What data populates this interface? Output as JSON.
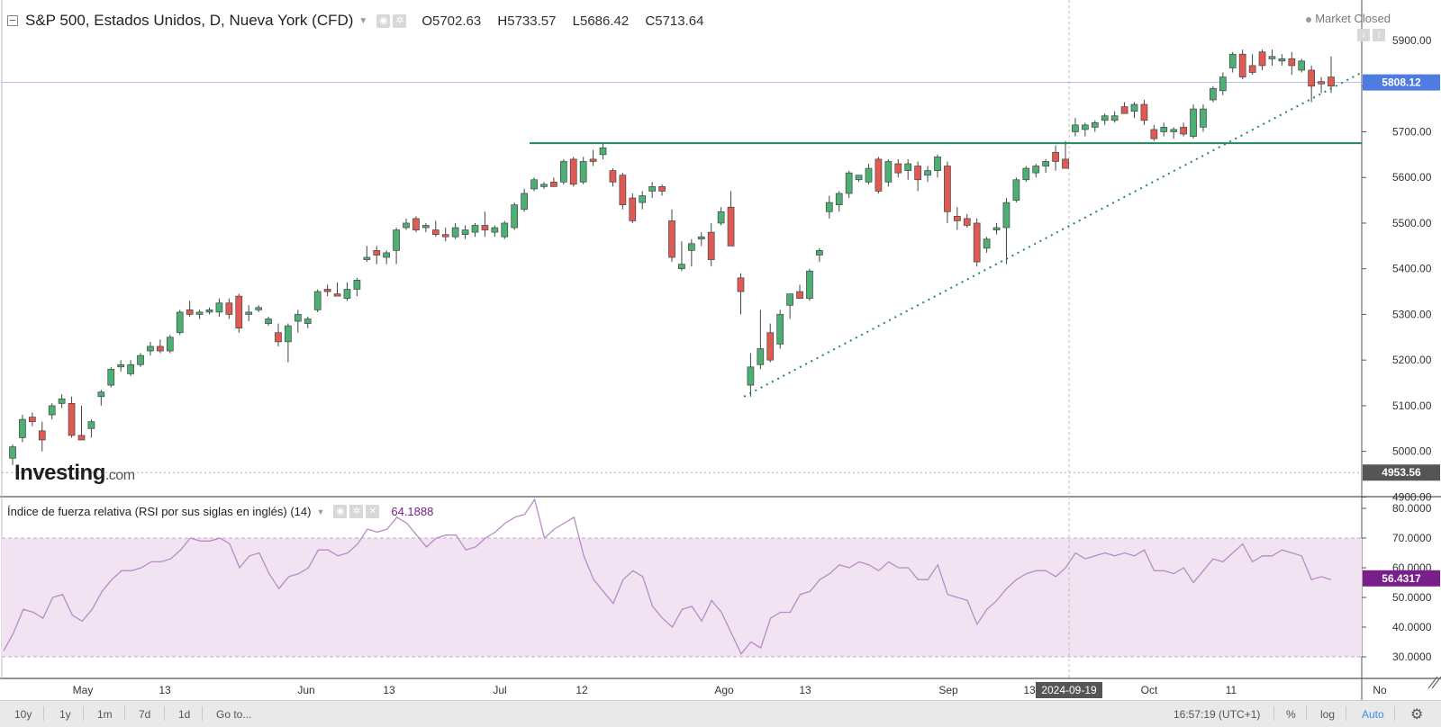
{
  "header": {
    "title": "S&P 500, Estados Unidos, D, Nueva York (CFD)",
    "ohlc": [
      {
        "key": "O",
        "value": "5702.63"
      },
      {
        "key": "H",
        "value": "5733.57"
      },
      {
        "key": "L",
        "value": "5686.42"
      },
      {
        "key": "C",
        "value": "5713.64"
      }
    ],
    "market_status": "Market Closed"
  },
  "price_axis": {
    "ticks": [
      "5900.00",
      "5800.00",
      "5700.00",
      "5600.00",
      "5500.00",
      "5400.00",
      "5300.00",
      "5200.00",
      "5100.00",
      "5000.00",
      "4900.00"
    ],
    "crosshair_label": "5808.12",
    "cursor_price_label": "4953.56"
  },
  "rsi": {
    "title": "Índice de fuerza relativa (RSI por sus siglas en inglés) (14)",
    "value": "64.1888",
    "ticks": [
      "80.0000",
      "70.0000",
      "60.0000",
      "50.0000",
      "40.0000",
      "30.0000"
    ],
    "last_label": "56.4317"
  },
  "time_axis": {
    "ticks": [
      "May",
      "13",
      "Jun",
      "13",
      "Jul",
      "12",
      "Ago",
      "13",
      "Sep",
      "13",
      "Oct",
      "11",
      "No"
    ],
    "crosshair_label": "2024-09-19"
  },
  "logo": {
    "text": "Investing",
    "suffix": ".com"
  },
  "bottom_bar": {
    "ranges": [
      "10y",
      "1y",
      "1m",
      "7d",
      "1d",
      "Go to..."
    ],
    "clock": "16:57:19 (UTC+1)",
    "pct": "%",
    "log": "log",
    "auto": "Auto"
  },
  "colors": {
    "up": "#4caf73",
    "down": "#e05a54",
    "rsi_line": "#b88cc6",
    "rsi_band": "#f1e3f1",
    "support": "#1f8a5c",
    "crosshair_label": "#4f7ce0",
    "rsi_label": "#7a1f8a"
  },
  "chart_data": {
    "type": "candlestick",
    "title": "S&P 500, Estados Unidos, D, Nueva York (CFD)",
    "ylim": [
      4900,
      5950
    ],
    "candles": [
      {
        "o": 4985,
        "h": 5015,
        "l": 4970,
        "c": 5010
      },
      {
        "o": 5030,
        "h": 5080,
        "l": 5020,
        "c": 5070
      },
      {
        "o": 5075,
        "h": 5085,
        "l": 5055,
        "c": 5065
      },
      {
        "o": 5045,
        "h": 5065,
        "l": 5000,
        "c": 5025
      },
      {
        "o": 5080,
        "h": 5105,
        "l": 5070,
        "c": 5100
      },
      {
        "o": 5105,
        "h": 5125,
        "l": 5095,
        "c": 5115
      },
      {
        "o": 5105,
        "h": 5120,
        "l": 5030,
        "c": 5035
      },
      {
        "o": 5035,
        "h": 5100,
        "l": 5025,
        "c": 5025
      },
      {
        "o": 5050,
        "h": 5070,
        "l": 5030,
        "c": 5065
      },
      {
        "o": 5120,
        "h": 5135,
        "l": 5100,
        "c": 5130
      },
      {
        "o": 5145,
        "h": 5185,
        "l": 5140,
        "c": 5180
      },
      {
        "o": 5185,
        "h": 5200,
        "l": 5175,
        "c": 5190
      },
      {
        "o": 5170,
        "h": 5200,
        "l": 5165,
        "c": 5190
      },
      {
        "o": 5190,
        "h": 5215,
        "l": 5185,
        "c": 5210
      },
      {
        "o": 5220,
        "h": 5240,
        "l": 5210,
        "c": 5230
      },
      {
        "o": 5230,
        "h": 5245,
        "l": 5215,
        "c": 5220
      },
      {
        "o": 5220,
        "h": 5255,
        "l": 5215,
        "c": 5250
      },
      {
        "o": 5260,
        "h": 5310,
        "l": 5255,
        "c": 5305
      },
      {
        "o": 5310,
        "h": 5330,
        "l": 5295,
        "c": 5300
      },
      {
        "o": 5300,
        "h": 5310,
        "l": 5290,
        "c": 5305
      },
      {
        "o": 5305,
        "h": 5315,
        "l": 5300,
        "c": 5310
      },
      {
        "o": 5305,
        "h": 5335,
        "l": 5295,
        "c": 5325
      },
      {
        "o": 5325,
        "h": 5335,
        "l": 5290,
        "c": 5300
      },
      {
        "o": 5340,
        "h": 5345,
        "l": 5260,
        "c": 5270
      },
      {
        "o": 5300,
        "h": 5320,
        "l": 5285,
        "c": 5305
      },
      {
        "o": 5310,
        "h": 5320,
        "l": 5305,
        "c": 5315
      },
      {
        "o": 5280,
        "h": 5295,
        "l": 5275,
        "c": 5290
      },
      {
        "o": 5260,
        "h": 5280,
        "l": 5230,
        "c": 5240
      },
      {
        "o": 5240,
        "h": 5280,
        "l": 5195,
        "c": 5275
      },
      {
        "o": 5285,
        "h": 5310,
        "l": 5260,
        "c": 5300
      },
      {
        "o": 5280,
        "h": 5295,
        "l": 5270,
        "c": 5290
      },
      {
        "o": 5310,
        "h": 5355,
        "l": 5305,
        "c": 5350
      },
      {
        "o": 5355,
        "h": 5365,
        "l": 5340,
        "c": 5350
      },
      {
        "o": 5345,
        "h": 5370,
        "l": 5340,
        "c": 5340
      },
      {
        "o": 5335,
        "h": 5370,
        "l": 5330,
        "c": 5355
      },
      {
        "o": 5355,
        "h": 5380,
        "l": 5340,
        "c": 5375
      },
      {
        "o": 5420,
        "h": 5450,
        "l": 5415,
        "c": 5425
      },
      {
        "o": 5440,
        "h": 5450,
        "l": 5410,
        "c": 5430
      },
      {
        "o": 5425,
        "h": 5440,
        "l": 5410,
        "c": 5435
      },
      {
        "o": 5440,
        "h": 5490,
        "l": 5410,
        "c": 5485
      },
      {
        "o": 5490,
        "h": 5510,
        "l": 5485,
        "c": 5500
      },
      {
        "o": 5510,
        "h": 5515,
        "l": 5480,
        "c": 5485
      },
      {
        "o": 5490,
        "h": 5500,
        "l": 5480,
        "c": 5495
      },
      {
        "o": 5485,
        "h": 5505,
        "l": 5470,
        "c": 5475
      },
      {
        "o": 5475,
        "h": 5490,
        "l": 5460,
        "c": 5470
      },
      {
        "o": 5470,
        "h": 5500,
        "l": 5465,
        "c": 5490
      },
      {
        "o": 5475,
        "h": 5495,
        "l": 5465,
        "c": 5485
      },
      {
        "o": 5480,
        "h": 5500,
        "l": 5470,
        "c": 5495
      },
      {
        "o": 5495,
        "h": 5525,
        "l": 5470,
        "c": 5485
      },
      {
        "o": 5480,
        "h": 5495,
        "l": 5470,
        "c": 5490
      },
      {
        "o": 5470,
        "h": 5505,
        "l": 5465,
        "c": 5500
      },
      {
        "o": 5490,
        "h": 5545,
        "l": 5485,
        "c": 5540
      },
      {
        "o": 5530,
        "h": 5575,
        "l": 5525,
        "c": 5565
      },
      {
        "o": 5575,
        "h": 5600,
        "l": 5570,
        "c": 5595
      },
      {
        "o": 5580,
        "h": 5590,
        "l": 5575,
        "c": 5585
      },
      {
        "o": 5590,
        "h": 5600,
        "l": 5585,
        "c": 5580
      },
      {
        "o": 5590,
        "h": 5640,
        "l": 5585,
        "c": 5635
      },
      {
        "o": 5640,
        "h": 5645,
        "l": 5580,
        "c": 5585
      },
      {
        "o": 5590,
        "h": 5645,
        "l": 5585,
        "c": 5635
      },
      {
        "o": 5640,
        "h": 5660,
        "l": 5625,
        "c": 5635
      },
      {
        "o": 5650,
        "h": 5675,
        "l": 5640,
        "c": 5665
      },
      {
        "o": 5615,
        "h": 5620,
        "l": 5580,
        "c": 5590
      },
      {
        "o": 5605,
        "h": 5610,
        "l": 5530,
        "c": 5540
      },
      {
        "o": 5555,
        "h": 5565,
        "l": 5500,
        "c": 5505
      },
      {
        "o": 5545,
        "h": 5570,
        "l": 5530,
        "c": 5560
      },
      {
        "o": 5570,
        "h": 5590,
        "l": 5555,
        "c": 5580
      },
      {
        "o": 5580,
        "h": 5585,
        "l": 5560,
        "c": 5570
      },
      {
        "o": 5505,
        "h": 5530,
        "l": 5415,
        "c": 5425
      },
      {
        "o": 5400,
        "h": 5460,
        "l": 5395,
        "c": 5410
      },
      {
        "o": 5440,
        "h": 5465,
        "l": 5405,
        "c": 5455
      },
      {
        "o": 5465,
        "h": 5480,
        "l": 5450,
        "c": 5470
      },
      {
        "o": 5480,
        "h": 5500,
        "l": 5405,
        "c": 5420
      },
      {
        "o": 5500,
        "h": 5535,
        "l": 5495,
        "c": 5525
      },
      {
        "o": 5535,
        "h": 5570,
        "l": 5460,
        "c": 5450
      },
      {
        "o": 5380,
        "h": 5390,
        "l": 5300,
        "c": 5350
      },
      {
        "o": 5145,
        "h": 5215,
        "l": 5120,
        "c": 5185
      },
      {
        "o": 5190,
        "h": 5310,
        "l": 5180,
        "c": 5225
      },
      {
        "o": 5260,
        "h": 5280,
        "l": 5195,
        "c": 5200
      },
      {
        "o": 5235,
        "h": 5310,
        "l": 5225,
        "c": 5300
      },
      {
        "o": 5320,
        "h": 5340,
        "l": 5290,
        "c": 5345
      },
      {
        "o": 5350,
        "h": 5365,
        "l": 5335,
        "c": 5335
      },
      {
        "o": 5335,
        "h": 5400,
        "l": 5330,
        "c": 5395
      },
      {
        "o": 5430,
        "h": 5445,
        "l": 5415,
        "c": 5440
      },
      {
        "o": 5525,
        "h": 5560,
        "l": 5510,
        "c": 5545
      },
      {
        "o": 5540,
        "h": 5570,
        "l": 5525,
        "c": 5565
      },
      {
        "o": 5565,
        "h": 5615,
        "l": 5555,
        "c": 5610
      },
      {
        "o": 5595,
        "h": 5605,
        "l": 5590,
        "c": 5605
      },
      {
        "o": 5590,
        "h": 5630,
        "l": 5585,
        "c": 5620
      },
      {
        "o": 5640,
        "h": 5645,
        "l": 5565,
        "c": 5570
      },
      {
        "o": 5590,
        "h": 5640,
        "l": 5580,
        "c": 5635
      },
      {
        "o": 5630,
        "h": 5640,
        "l": 5600,
        "c": 5610
      },
      {
        "o": 5615,
        "h": 5640,
        "l": 5595,
        "c": 5630
      },
      {
        "o": 5625,
        "h": 5635,
        "l": 5570,
        "c": 5595
      },
      {
        "o": 5605,
        "h": 5625,
        "l": 5590,
        "c": 5615
      },
      {
        "o": 5615,
        "h": 5650,
        "l": 5600,
        "c": 5645
      },
      {
        "o": 5625,
        "h": 5635,
        "l": 5500,
        "c": 5525
      },
      {
        "o": 5515,
        "h": 5535,
        "l": 5485,
        "c": 5505
      },
      {
        "o": 5510,
        "h": 5520,
        "l": 5490,
        "c": 5495
      },
      {
        "o": 5500,
        "h": 5510,
        "l": 5405,
        "c": 5415
      },
      {
        "o": 5445,
        "h": 5470,
        "l": 5435,
        "c": 5465
      },
      {
        "o": 5485,
        "h": 5500,
        "l": 5475,
        "c": 5490
      },
      {
        "o": 5490,
        "h": 5555,
        "l": 5410,
        "c": 5545
      },
      {
        "o": 5550,
        "h": 5600,
        "l": 5545,
        "c": 5595
      },
      {
        "o": 5595,
        "h": 5625,
        "l": 5590,
        "c": 5620
      },
      {
        "o": 5610,
        "h": 5630,
        "l": 5600,
        "c": 5625
      },
      {
        "o": 5625,
        "h": 5640,
        "l": 5610,
        "c": 5635
      },
      {
        "o": 5655,
        "h": 5670,
        "l": 5615,
        "c": 5635
      },
      {
        "o": 5640,
        "h": 5680,
        "l": 5620,
        "c": 5620
      },
      {
        "o": 5700,
        "h": 5730,
        "l": 5690,
        "c": 5715
      },
      {
        "o": 5705,
        "h": 5720,
        "l": 5690,
        "c": 5715
      },
      {
        "o": 5710,
        "h": 5725,
        "l": 5700,
        "c": 5720
      },
      {
        "o": 5725,
        "h": 5740,
        "l": 5715,
        "c": 5735
      },
      {
        "o": 5725,
        "h": 5745,
        "l": 5720,
        "c": 5735
      },
      {
        "o": 5755,
        "h": 5765,
        "l": 5740,
        "c": 5740
      },
      {
        "o": 5745,
        "h": 5765,
        "l": 5730,
        "c": 5760
      },
      {
        "o": 5760,
        "h": 5770,
        "l": 5715,
        "c": 5725
      },
      {
        "o": 5705,
        "h": 5715,
        "l": 5680,
        "c": 5685
      },
      {
        "o": 5700,
        "h": 5720,
        "l": 5690,
        "c": 5710
      },
      {
        "o": 5700,
        "h": 5710,
        "l": 5685,
        "c": 5705
      },
      {
        "o": 5710,
        "h": 5720,
        "l": 5690,
        "c": 5695
      },
      {
        "o": 5690,
        "h": 5760,
        "l": 5685,
        "c": 5750
      },
      {
        "o": 5710,
        "h": 5760,
        "l": 5700,
        "c": 5750
      },
      {
        "o": 5770,
        "h": 5800,
        "l": 5765,
        "c": 5795
      },
      {
        "o": 5790,
        "h": 5830,
        "l": 5780,
        "c": 5820
      },
      {
        "o": 5840,
        "h": 5875,
        "l": 5830,
        "c": 5870
      },
      {
        "o": 5870,
        "h": 5880,
        "l": 5815,
        "c": 5820
      },
      {
        "o": 5845,
        "h": 5870,
        "l": 5825,
        "c": 5830
      },
      {
        "o": 5875,
        "h": 5880,
        "l": 5835,
        "c": 5845
      },
      {
        "o": 5860,
        "h": 5880,
        "l": 5845,
        "c": 5865
      },
      {
        "o": 5855,
        "h": 5870,
        "l": 5845,
        "c": 5860
      },
      {
        "o": 5860,
        "h": 5875,
        "l": 5825,
        "c": 5845
      },
      {
        "o": 5835,
        "h": 5860,
        "l": 5830,
        "c": 5855
      },
      {
        "o": 5835,
        "h": 5845,
        "l": 5765,
        "c": 5800
      },
      {
        "o": 5810,
        "h": 5820,
        "l": 5785,
        "c": 5805
      },
      {
        "o": 5820,
        "h": 5865,
        "l": 5785,
        "c": 5800
      }
    ],
    "support_level": 5675,
    "rsi": {
      "ylim": [
        28,
        86
      ],
      "values": [
        32,
        38,
        46,
        45,
        43,
        50,
        51,
        44,
        42,
        46,
        52,
        56,
        59,
        59,
        60,
        62,
        62,
        63,
        66,
        70,
        69,
        69,
        70,
        68,
        60,
        64,
        65,
        58,
        53,
        57,
        58,
        60,
        66,
        66,
        64,
        65,
        68,
        73,
        72,
        73,
        77,
        75,
        71,
        67,
        70,
        71,
        71,
        66,
        67,
        70,
        72,
        75,
        77,
        78,
        83,
        70,
        73,
        75,
        77,
        64,
        56,
        52,
        48,
        56,
        59,
        57,
        47,
        43,
        40,
        46,
        47,
        42,
        49,
        45,
        38,
        31,
        35,
        33,
        43,
        45,
        45,
        51,
        52,
        56,
        58,
        61,
        60,
        62,
        61,
        59,
        62,
        60,
        60,
        56,
        56,
        61,
        51,
        50,
        49,
        41,
        46,
        49,
        53,
        56,
        58,
        59,
        59,
        57,
        60,
        65,
        63,
        64,
        65,
        64,
        65,
        64,
        66,
        59,
        59,
        58,
        60,
        55,
        59,
        63,
        62,
        65,
        68,
        62,
        64,
        64,
        66,
        65,
        64,
        56,
        57,
        56
      ]
    }
  }
}
